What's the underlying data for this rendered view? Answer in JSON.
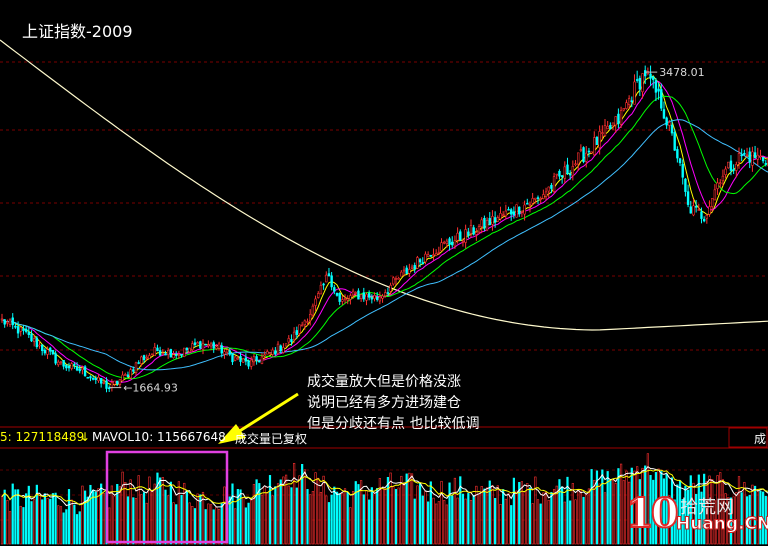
{
  "title": "上证指数-2009",
  "volume_bar": {
    "ma5": "5: 127118489",
    "ma10_label": "MAVOL10: 115667648",
    "status": "成交量已复权",
    "right_cut": "成"
  },
  "annotation": {
    "lines": [
      "成交量放大但是价格没涨",
      "说明已经有多方进场建仓",
      "但是分歧还有点 也比较低调"
    ]
  },
  "logo": {
    "ten": "10",
    "cn": "拾荒网",
    "en": "Huang.CN"
  },
  "colors": {
    "up": "#ff3030",
    "down": "#00ffff",
    "ma_yellow": "#ffff00",
    "ma_magenta": "#ff00ff",
    "ma_green": "#00ff00",
    "ma_cyan": "#40c0ff",
    "ma_long": "#fffacd",
    "highlight": "#e040e0"
  },
  "chart_data": {
    "type": "candlestick",
    "title": "上证指数-2009",
    "annotations": [
      {
        "label": "3478.01",
        "kind": "high",
        "value": 3478.01
      },
      {
        "label": "1664.93",
        "kind": "low",
        "value": 1664.93
      }
    ],
    "indicators": {
      "ma5_volume": 127118489,
      "mavol10": 115667648
    },
    "series": [
      {
        "name": "price",
        "anchors": [
          [
            0,
            2050
          ],
          [
            8,
            1980
          ],
          [
            16,
            1880
          ],
          [
            22,
            1800
          ],
          [
            30,
            1760
          ],
          [
            36,
            1700
          ],
          [
            40,
            1664.93
          ],
          [
            46,
            1730
          ],
          [
            52,
            1830
          ],
          [
            58,
            1880
          ],
          [
            66,
            1860
          ],
          [
            74,
            1920
          ],
          [
            80,
            1900
          ],
          [
            86,
            1840
          ],
          [
            92,
            1800
          ],
          [
            100,
            1860
          ],
          [
            108,
            1940
          ],
          [
            116,
            2120
          ],
          [
            122,
            2320
          ],
          [
            126,
            2150
          ],
          [
            132,
            2200
          ],
          [
            140,
            2180
          ],
          [
            150,
            2320
          ],
          [
            160,
            2450
          ],
          [
            170,
            2520
          ],
          [
            180,
            2600
          ],
          [
            190,
            2680
          ],
          [
            200,
            2750
          ],
          [
            210,
            2900
          ],
          [
            220,
            3050
          ],
          [
            230,
            3200
          ],
          [
            236,
            3380
          ],
          [
            240,
            3478.01
          ],
          [
            246,
            3300
          ],
          [
            252,
            3000
          ],
          [
            256,
            2700
          ],
          [
            262,
            2650
          ],
          [
            268,
            2880
          ],
          [
            276,
            3000
          ],
          [
            286,
            2980
          ]
        ]
      }
    ],
    "volume_anchors": [
      [
        0,
        110
      ],
      [
        30,
        105
      ],
      [
        40,
        112
      ],
      [
        46,
        150
      ],
      [
        52,
        125
      ],
      [
        60,
        140
      ],
      [
        70,
        115
      ],
      [
        80,
        110
      ],
      [
        90,
        118
      ],
      [
        100,
        145
      ],
      [
        106,
        170
      ],
      [
        112,
        160
      ],
      [
        120,
        130
      ],
      [
        130,
        120
      ],
      [
        140,
        135
      ],
      [
        150,
        140
      ],
      [
        160,
        125
      ],
      [
        170,
        130
      ],
      [
        180,
        120
      ],
      [
        190,
        125
      ],
      [
        200,
        130
      ],
      [
        210,
        135
      ],
      [
        220,
        145
      ],
      [
        230,
        160
      ],
      [
        236,
        175
      ],
      [
        240,
        200
      ],
      [
        246,
        150
      ],
      [
        252,
        130
      ],
      [
        260,
        140
      ],
      [
        270,
        135
      ],
      [
        286,
        130
      ]
    ]
  }
}
